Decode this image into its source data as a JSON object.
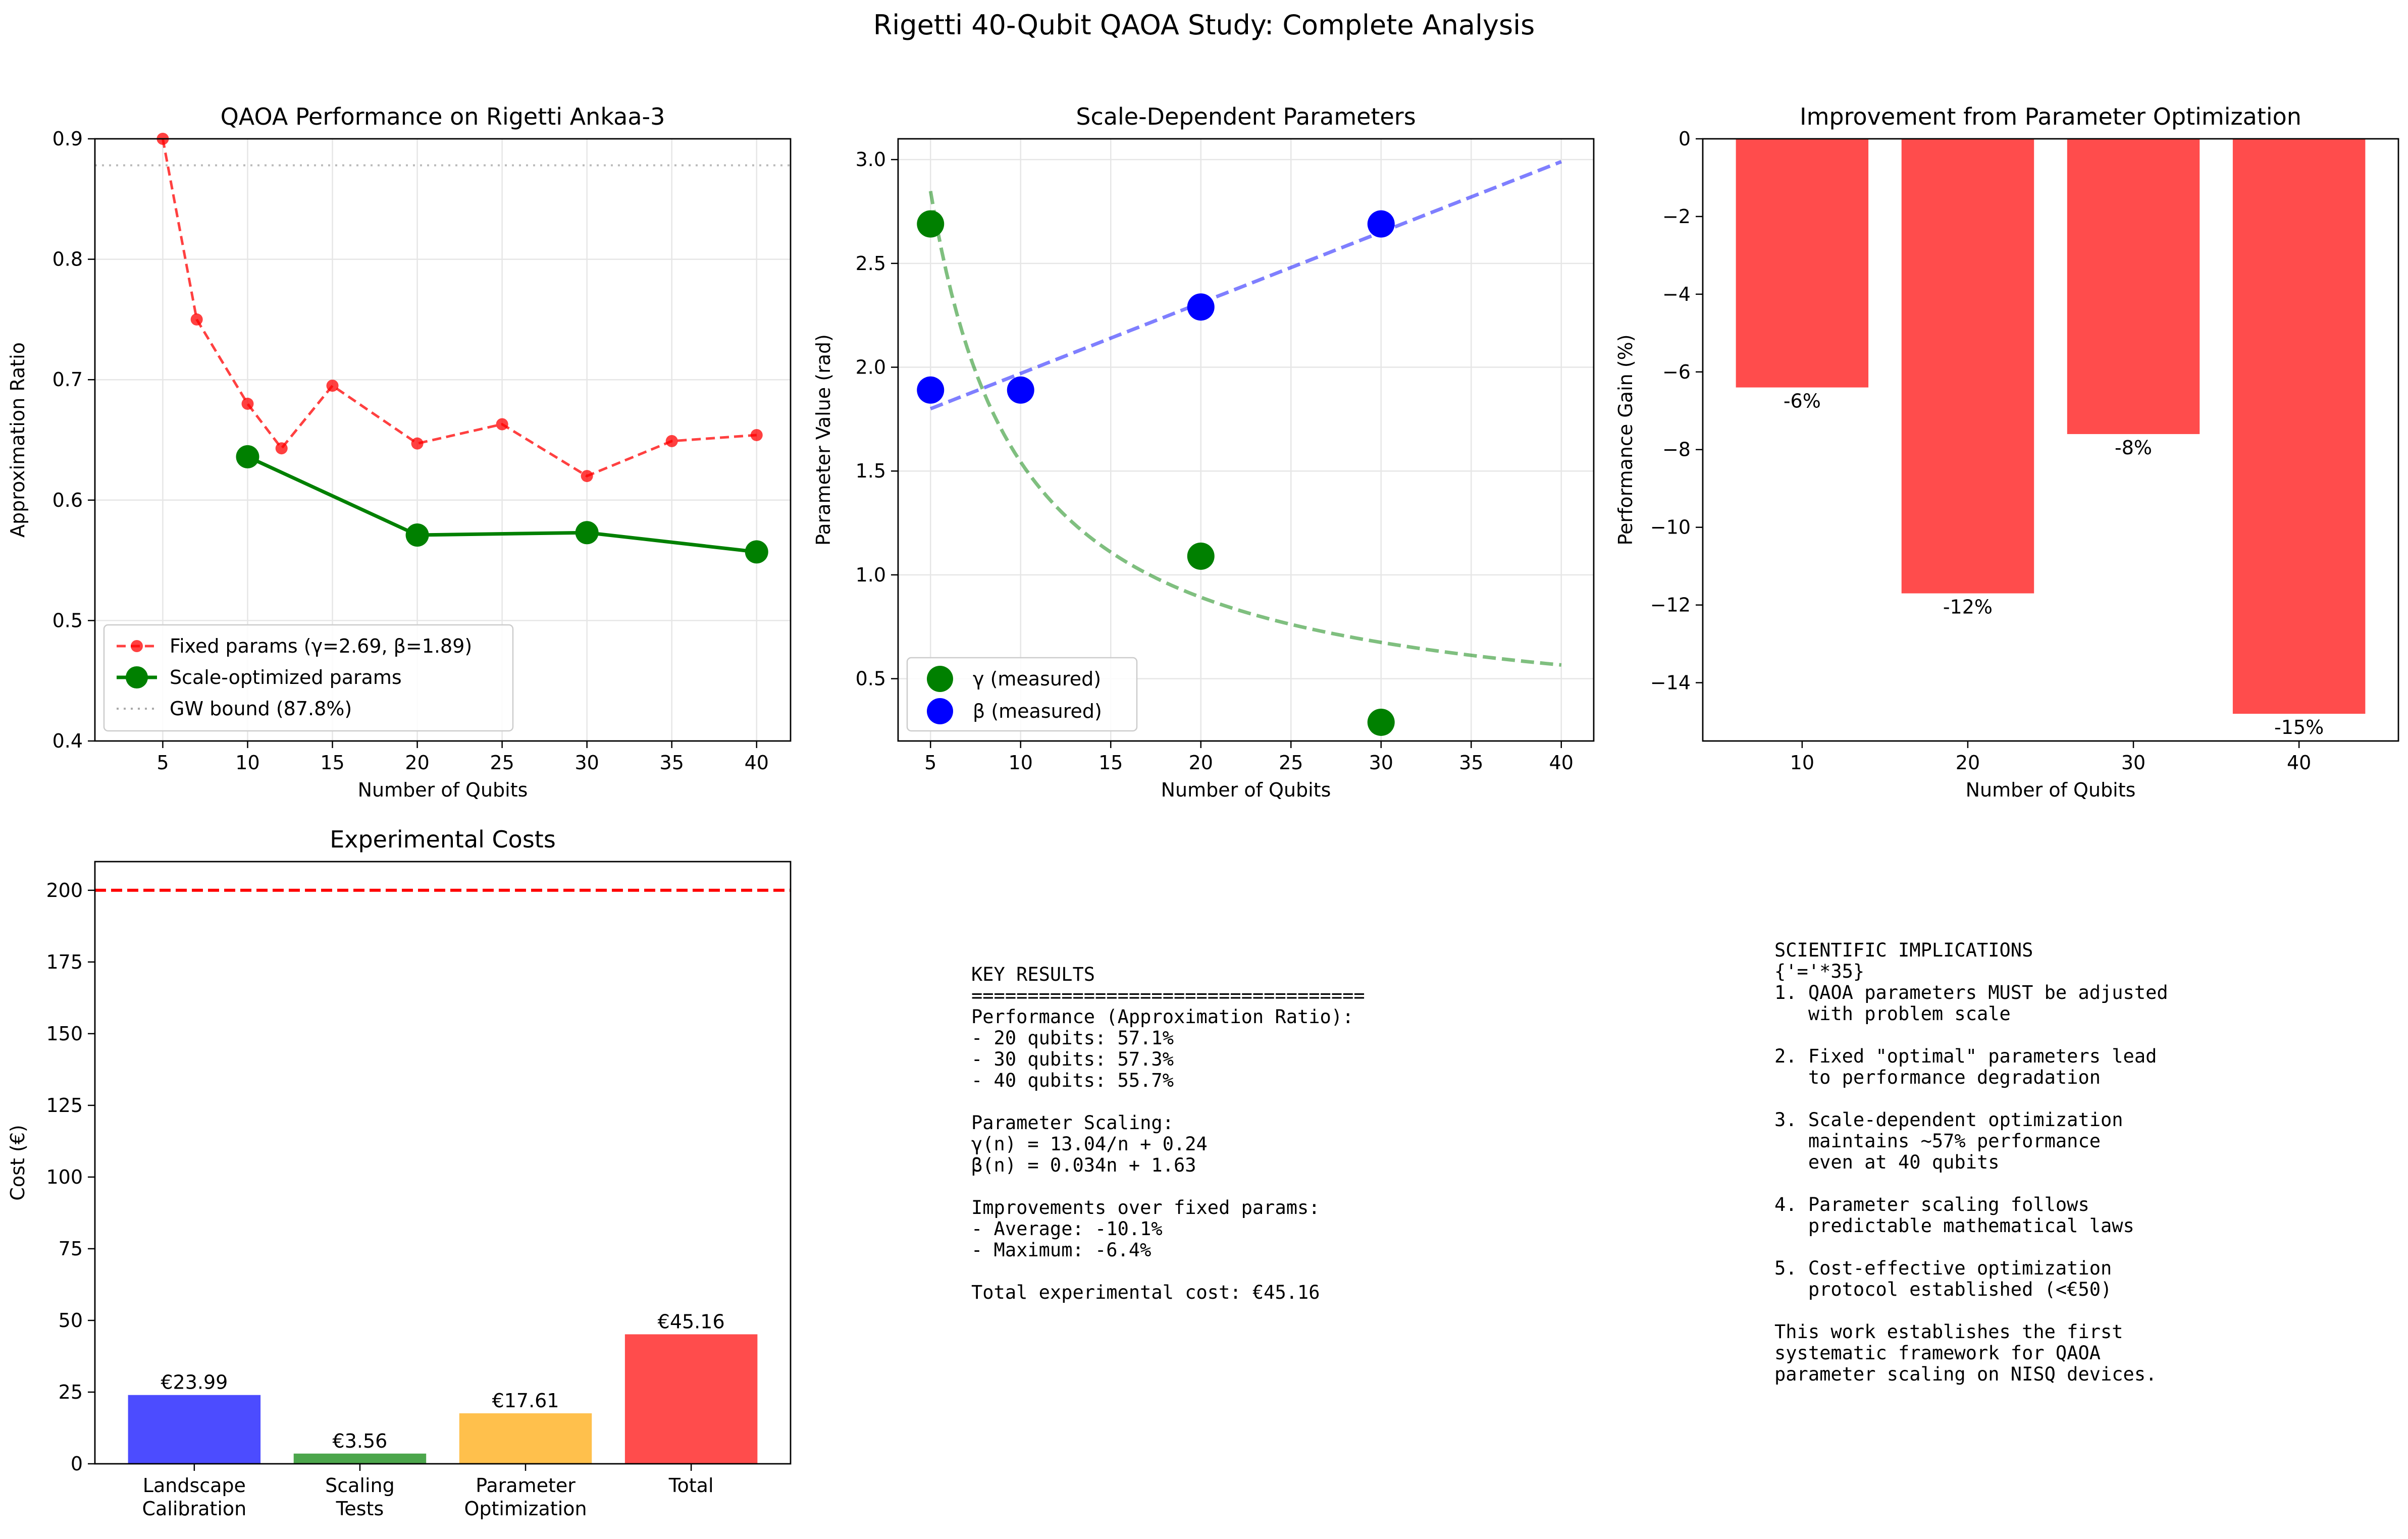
{
  "figure": {
    "suptitle": "Rigetti 40-Qubit QAOA Study: Complete Analysis"
  },
  "chart_data": [
    {
      "type": "line",
      "title": "QAOA Performance on Rigetti Ankaa-3",
      "xlabel": "Number of Qubits",
      "ylabel": "Approximation Ratio",
      "xlim": [
        1,
        42
      ],
      "ylim": [
        0.4,
        0.9
      ],
      "xticks": [
        5,
        10,
        15,
        20,
        25,
        30,
        35,
        40
      ],
      "yticks": [
        0.4,
        0.5,
        0.6,
        0.7,
        0.8,
        0.9
      ],
      "grid": true,
      "legend": "lower-left",
      "series": [
        {
          "name": "Fixed params (γ=2.69, β=1.89)",
          "color": "#ff0000",
          "style": "dashed",
          "x": [
            5,
            7,
            10,
            12,
            15,
            20,
            25,
            30,
            35,
            40
          ],
          "y": [
            0.9,
            0.75,
            0.68,
            0.643,
            0.695,
            0.647,
            0.663,
            0.62,
            0.649,
            0.654
          ]
        },
        {
          "name": "Scale-optimized params",
          "color": "#008000",
          "style": "solid",
          "x": [
            10,
            20,
            30,
            40
          ],
          "y": [
            0.636,
            0.571,
            0.573,
            0.557
          ]
        }
      ],
      "hlines": [
        {
          "name": "GW bound (87.8%)",
          "y": 0.878,
          "color": "#aaaaaa",
          "style": "dotted"
        }
      ]
    },
    {
      "type": "scatter",
      "title": "Scale-Dependent Parameters",
      "xlabel": "Number of Qubits",
      "ylabel": "Parameter Value (rad)",
      "xlim": [
        3.2,
        41.8
      ],
      "ylim": [
        0.2,
        3.1
      ],
      "xticks": [
        5,
        10,
        15,
        20,
        25,
        30,
        35,
        40
      ],
      "yticks": [
        0.5,
        1.0,
        1.5,
        2.0,
        2.5,
        3.0
      ],
      "grid": true,
      "legend": "lower-left",
      "series": [
        {
          "name": "γ (measured)",
          "color": "#008000",
          "x": [
            5,
            20,
            30
          ],
          "y": [
            2.69,
            1.09,
            0.29
          ]
        },
        {
          "name": "β (measured)",
          "color": "#0000ff",
          "x": [
            5,
            10,
            20,
            30
          ],
          "y": [
            1.89,
            1.89,
            2.29,
            2.69
          ]
        }
      ],
      "fits": [
        {
          "label": "γ(n) = 13.04/n + 0.24",
          "kind": "reciprocal",
          "a": 13.04,
          "b": 0.24,
          "color": "#008000",
          "x_range": [
            5,
            40
          ]
        },
        {
          "label": "β(n) = 0.034n + 1.63",
          "kind": "linear",
          "a": 0.034,
          "b": 1.63,
          "color": "#0000ff",
          "x_range": [
            5,
            40
          ]
        }
      ]
    },
    {
      "type": "bar",
      "title": "Improvement from Parameter Optimization",
      "xlabel": "Number of Qubits",
      "ylabel": "Performance Gain (%)",
      "categories": [
        "10",
        "20",
        "30",
        "40"
      ],
      "values": [
        -6.4,
        -11.7,
        -7.6,
        -14.8
      ],
      "data_labels": [
        "-6%",
        "-12%",
        "-8%",
        "-15%"
      ],
      "ylim": [
        -15.5,
        0
      ],
      "yticks": [
        0,
        -2,
        -4,
        -6,
        -8,
        -10,
        -12,
        -14
      ],
      "color": "#ff0000"
    },
    {
      "type": "bar",
      "title": "Experimental Costs",
      "xlabel": "",
      "ylabel": "Cost (€)",
      "categories": [
        [
          "Landscape",
          "Calibration"
        ],
        [
          "Scaling",
          "Tests"
        ],
        [
          "Parameter",
          "Optimization"
        ],
        [
          "Total"
        ]
      ],
      "values": [
        23.99,
        3.56,
        17.61,
        45.16
      ],
      "data_labels": [
        "€23.99",
        "€3.56",
        "€17.61",
        "€45.16"
      ],
      "colors": [
        "#0000ff",
        "#008000",
        "#ffa500",
        "#ff0000"
      ],
      "ylim": [
        0,
        210
      ],
      "yticks": [
        0,
        25,
        50,
        75,
        100,
        125,
        150,
        175,
        200
      ],
      "hlines": [
        {
          "y": 200,
          "color": "#ff0000",
          "style": "dashed"
        }
      ]
    }
  ],
  "key_results": {
    "lines": [
      "KEY RESULTS",
      "===================================",
      "Performance (Approximation Ratio):",
      "- 20 qubits: 57.1%",
      "- 30 qubits: 57.3%",
      "- 40 qubits: 55.7%",
      "",
      "Parameter Scaling:",
      "γ(n) = 13.04/n + 0.24",
      "β(n) = 0.034n + 1.63",
      "",
      "Improvements over fixed params:",
      "- Average: -10.1%",
      "- Maximum: -6.4%",
      "",
      "Total experimental cost: €45.16"
    ]
  },
  "implications": {
    "lines": [
      "SCIENTIFIC IMPLICATIONS",
      "{'='*35}",
      "1. QAOA parameters MUST be adjusted",
      "   with problem scale",
      "",
      "2. Fixed \"optimal\" parameters lead",
      "   to performance degradation",
      "",
      "3. Scale-dependent optimization",
      "   maintains ~57% performance",
      "   even at 40 qubits",
      "",
      "4. Parameter scaling follows",
      "   predictable mathematical laws",
      "",
      "5. Cost-effective optimization",
      "   protocol established (<€50)",
      "",
      "This work establishes the first",
      "systematic framework for QAOA",
      "parameter scaling on NISQ devices."
    ]
  }
}
